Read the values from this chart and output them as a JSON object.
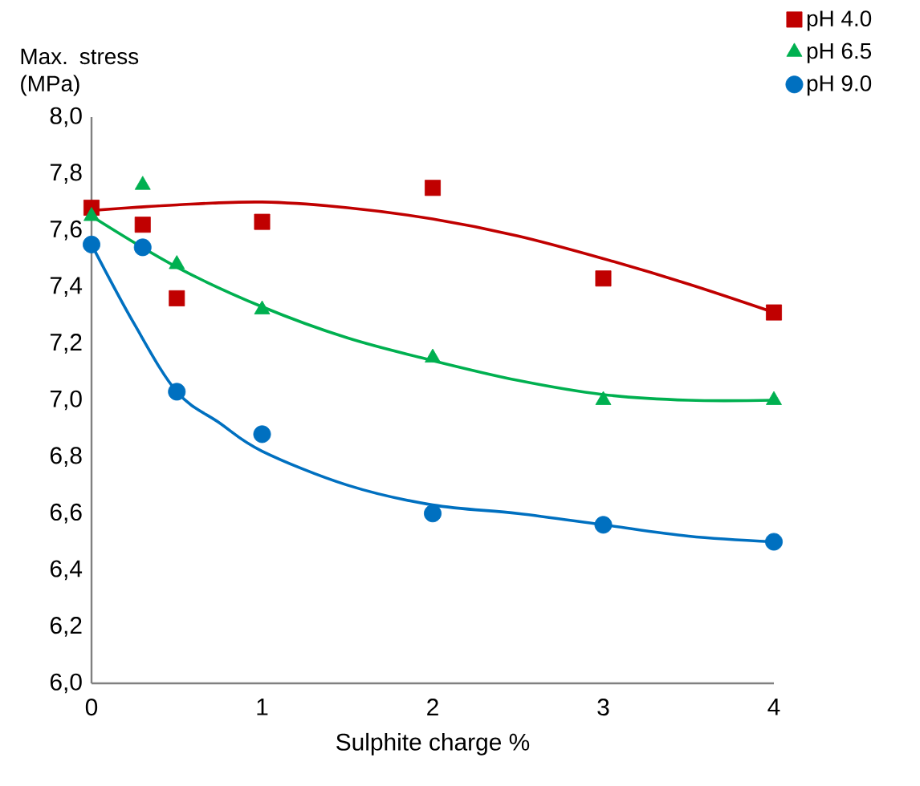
{
  "chart_data": {
    "type": "scatter",
    "xlabel": "Sulphite charge %",
    "ylabel": "Max. stress (MPa)",
    "xlim": [
      0,
      4
    ],
    "ylim": [
      6.0,
      8.0
    ],
    "xticks": [
      0,
      1,
      2,
      3,
      4
    ],
    "yticks": [
      {
        "value": 6.0,
        "label": "6,0"
      },
      {
        "value": 6.2,
        "label": "6,2"
      },
      {
        "value": 6.4,
        "label": "6,4"
      },
      {
        "value": 6.6,
        "label": "6,6"
      },
      {
        "value": 6.8,
        "label": "6,8"
      },
      {
        "value": 7.0,
        "label": "7,0"
      },
      {
        "value": 7.2,
        "label": "7,2"
      },
      {
        "value": 7.4,
        "label": "7,4"
      },
      {
        "value": 7.6,
        "label": "7,6"
      },
      {
        "value": 7.8,
        "label": "7,8"
      },
      {
        "value": 8.0,
        "label": "8,0"
      }
    ],
    "grid": false,
    "legend": "top right",
    "series": [
      {
        "name": "pH 4.0",
        "color": "#c00000",
        "marker": "square",
        "x": [
          0,
          0.3,
          0.5,
          1,
          2,
          3,
          4
        ],
        "values": [
          7.68,
          7.62,
          7.36,
          7.63,
          7.75,
          7.43,
          7.31
        ]
      },
      {
        "name": "pH 6.5",
        "color": "#00b050",
        "marker": "triangle",
        "x": [
          0,
          0.3,
          0.5,
          1,
          2,
          3,
          4
        ],
        "values": [
          7.65,
          7.76,
          7.48,
          7.32,
          7.15,
          7.0,
          7.0
        ]
      },
      {
        "name": "pH 9.0",
        "color": "#0070c0",
        "marker": "circle",
        "x": [
          0,
          0.3,
          0.5,
          1,
          2,
          3,
          4
        ],
        "values": [
          7.55,
          7.54,
          7.03,
          6.88,
          6.6,
          6.56,
          6.5
        ]
      },
      {
        "type": "line",
        "color": "#c00000",
        "marker": "none",
        "x": [
          0,
          0.5,
          1,
          1.5,
          2,
          2.5,
          3,
          3.5,
          4
        ],
        "values": [
          7.67,
          7.69,
          7.7,
          7.68,
          7.64,
          7.58,
          7.5,
          7.41,
          7.31
        ]
      },
      {
        "type": "line",
        "color": "#00b050",
        "marker": "none",
        "x": [
          0,
          0.5,
          1,
          1.5,
          2,
          2.5,
          3,
          3.5,
          4
        ],
        "values": [
          7.65,
          7.47,
          7.33,
          7.22,
          7.14,
          7.07,
          7.02,
          7.0,
          7.0
        ]
      },
      {
        "type": "line",
        "color": "#0070c0",
        "marker": "none",
        "x": [
          0,
          0.25,
          0.5,
          0.75,
          1,
          1.5,
          2,
          2.5,
          3,
          3.5,
          4
        ],
        "values": [
          7.55,
          7.27,
          7.03,
          6.92,
          6.82,
          6.7,
          6.63,
          6.6,
          6.56,
          6.52,
          6.5
        ]
      }
    ]
  }
}
